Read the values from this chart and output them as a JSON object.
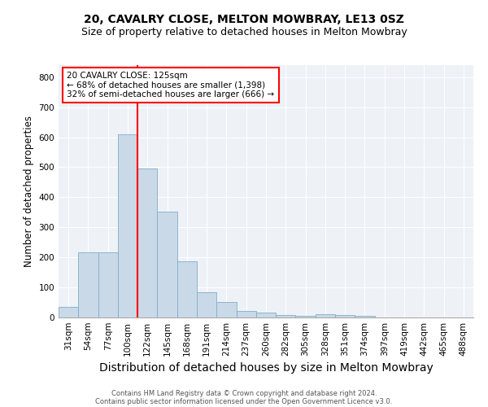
{
  "title1": "20, CAVALRY CLOSE, MELTON MOWBRAY, LE13 0SZ",
  "title2": "Size of property relative to detached houses in Melton Mowbray",
  "xlabel": "Distribution of detached houses by size in Melton Mowbray",
  "ylabel": "Number of detached properties",
  "footnote1": "Contains HM Land Registry data © Crown copyright and database right 2024.",
  "footnote2": "Contains public sector information licensed under the Open Government Licence v3.0.",
  "categories": [
    "31sqm",
    "54sqm",
    "77sqm",
    "100sqm",
    "122sqm",
    "145sqm",
    "168sqm",
    "191sqm",
    "214sqm",
    "237sqm",
    "260sqm",
    "282sqm",
    "305sqm",
    "328sqm",
    "351sqm",
    "374sqm",
    "397sqm",
    "419sqm",
    "442sqm",
    "465sqm",
    "488sqm"
  ],
  "values": [
    35,
    218,
    218,
    610,
    497,
    353,
    188,
    85,
    52,
    22,
    17,
    8,
    5,
    10,
    8,
    5,
    0,
    0,
    0,
    0,
    0
  ],
  "bar_color": "#c9d9e8",
  "bar_edgecolor": "#7faec8",
  "vline_index": 4,
  "vline_color": "red",
  "annotation_title": "20 CAVALRY CLOSE: 125sqm",
  "annotation_line2": "← 68% of detached houses are smaller (1,398)",
  "annotation_line3": "32% of semi-detached houses are larger (666) →",
  "annotation_box_edgecolor": "red",
  "annotation_box_facecolor": "white",
  "ylim": [
    0,
    840
  ],
  "yticks": [
    0,
    100,
    200,
    300,
    400,
    500,
    600,
    700,
    800
  ],
  "background_color": "#eef2f7",
  "title1_fontsize": 10,
  "title2_fontsize": 9,
  "xlabel_fontsize": 10,
  "ylabel_fontsize": 8.5,
  "tick_fontsize": 7.5,
  "annotation_fontsize": 7.5
}
